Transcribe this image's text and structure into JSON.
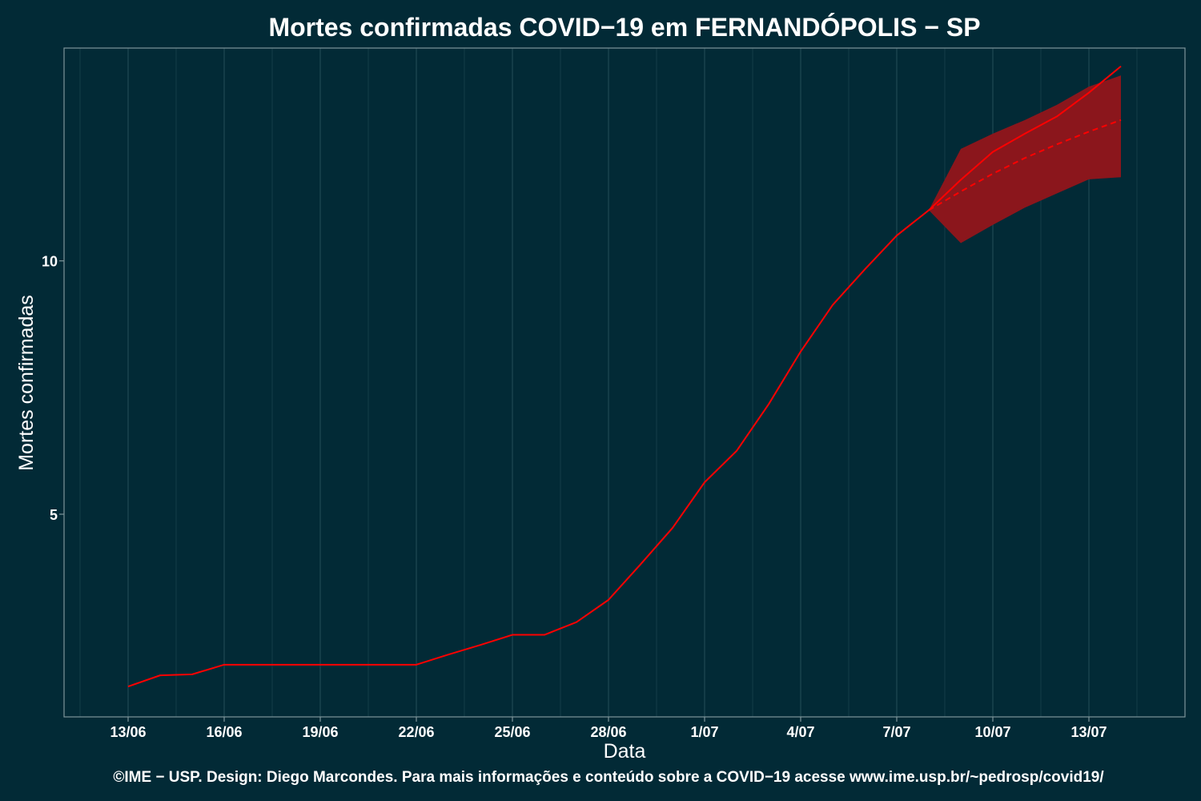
{
  "chart_data": {
    "type": "line",
    "title": "Mortes confirmadas COVID−19 em FERNANDÓPOLIS − SP",
    "xlabel": "Data",
    "ylabel": "Mortes confirmadas",
    "caption": "©IME − USP. Design: Diego Marcondes. Para mais informações e conteúdo sobre a COVID−19 acesse www.ime.usp.br/~pedrosp/covid19/",
    "x_tick_labels": [
      "13/06",
      "16/06",
      "19/06",
      "22/06",
      "25/06",
      "28/06",
      "1/07",
      "4/07",
      "7/07",
      "10/07",
      "13/07"
    ],
    "x_tick_dates": [
      "2020-06-13",
      "2020-06-16",
      "2020-06-19",
      "2020-06-22",
      "2020-06-25",
      "2020-06-28",
      "2020-07-01",
      "2020-07-04",
      "2020-07-07",
      "2020-07-10",
      "2020-07-13"
    ],
    "y_ticks": [
      5,
      10
    ],
    "xlim": [
      "2020-06-11",
      "2020-07-16"
    ],
    "ylim": [
      1.0,
      14.2
    ],
    "grid": true,
    "colors": {
      "background": "#022a36",
      "panel_border": "#7f9499",
      "grid": "#1d4651",
      "line": "#ff0000",
      "band": "#8b161c"
    },
    "series": [
      {
        "style": "solid",
        "x": [
          "2020-06-13",
          "2020-06-14",
          "2020-06-15",
          "2020-06-16",
          "2020-06-17",
          "2020-06-18",
          "2020-06-19",
          "2020-06-20",
          "2020-06-21",
          "2020-06-22",
          "2020-06-23",
          "2020-06-24",
          "2020-06-25",
          "2020-06-26",
          "2020-06-27",
          "2020-06-28",
          "2020-06-29",
          "2020-06-30",
          "2020-07-01",
          "2020-07-02",
          "2020-07-03",
          "2020-07-04",
          "2020-07-05",
          "2020-07-06",
          "2020-07-07",
          "2020-07-08",
          "2020-07-09",
          "2020-07-10",
          "2020-07-11",
          "2020-07-12",
          "2020-07-13",
          "2020-07-14"
        ],
        "y": [
          1.6,
          1.82,
          1.84,
          2.03,
          2.03,
          2.03,
          2.03,
          2.03,
          2.03,
          2.03,
          2.23,
          2.42,
          2.62,
          2.62,
          2.87,
          3.31,
          4.01,
          4.73,
          5.63,
          6.25,
          7.17,
          8.21,
          9.13,
          9.83,
          10.5,
          11.0,
          11.6,
          12.15,
          12.51,
          12.85,
          13.32,
          13.84
        ]
      },
      {
        "style": "dashed",
        "x": [
          "2020-07-08",
          "2020-07-09",
          "2020-07-10",
          "2020-07-11",
          "2020-07-12",
          "2020-07-13",
          "2020-07-14"
        ],
        "y": [
          11.0,
          11.37,
          11.72,
          12.03,
          12.3,
          12.55,
          12.78
        ]
      }
    ],
    "band": {
      "x": [
        "2020-07-08",
        "2020-07-09",
        "2020-07-10",
        "2020-07-11",
        "2020-07-12",
        "2020-07-13",
        "2020-07-14"
      ],
      "lower": [
        11.0,
        10.35,
        10.71,
        11.05,
        11.33,
        11.61,
        11.65
      ],
      "upper": [
        11.0,
        12.21,
        12.51,
        12.78,
        13.08,
        13.44,
        13.66
      ]
    }
  }
}
